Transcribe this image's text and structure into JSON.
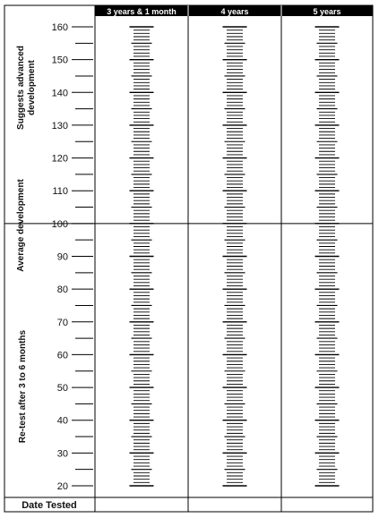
{
  "chart_data": {
    "type": "table",
    "columns": [
      "3 years & 1 month",
      "4 years",
      "5 years"
    ],
    "y_tick_labels": [
      "160",
      "150",
      "140",
      "130",
      "120",
      "110",
      "100",
      "90",
      "80",
      "70",
      "60",
      "50",
      "40",
      "30",
      "20"
    ],
    "ylim": [
      20,
      160
    ],
    "major_step": 10,
    "minor_step": 5,
    "scale_step": 1,
    "divider_value": 100,
    "zones": [
      {
        "label_lines": [
          "Suggests advanced",
          "development"
        ],
        "range": [
          100,
          160
        ]
      },
      {
        "label_lines": [
          "Average development"
        ],
        "range": [
          85,
          125
        ]
      },
      {
        "label_lines": [
          "Re-test after 3 to 6 months"
        ],
        "range": [
          20,
          70
        ]
      }
    ],
    "footer_label": "Date Tested",
    "colors": {
      "header_bg": "#000000",
      "header_text": "#ffffff",
      "lines": "#000000"
    }
  }
}
